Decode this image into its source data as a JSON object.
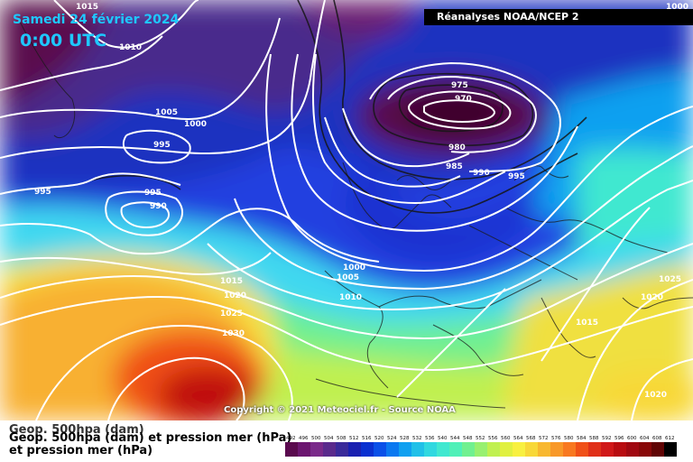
{
  "title": {
    "date": "Samedi 24 février 2024",
    "time": "0:00 UTC"
  },
  "source": "Réanalyses NOAA/NCEP 2",
  "copyright": "Copyright © 2021 Meteociel.fr - Source NOAA",
  "legend": {
    "line1": "Geop. 500hpa (dam)",
    "line2": "Geop. 500hpa (dam) et pression mer (hPa)",
    "line3": "et pression mer (hPa)"
  },
  "scale": {
    "ticks": [
      "492",
      "496",
      "500",
      "504",
      "508",
      "512",
      "516",
      "520",
      "524",
      "528",
      "532",
      "536",
      "540",
      "544",
      "548",
      "552",
      "556",
      "560",
      "564",
      "568",
      "572",
      "576",
      "580",
      "584",
      "588",
      "592",
      "596",
      "600",
      "604",
      "608",
      "612"
    ],
    "colors": [
      "#5a0a4e",
      "#6c1670",
      "#7a2a8a",
      "#5a2a8c",
      "#3a2a9a",
      "#1a20b0",
      "#0a30d0",
      "#0a50e8",
      "#0a78f0",
      "#10a0f0",
      "#20c0e8",
      "#30d8e0",
      "#40e8d0",
      "#50f0b8",
      "#70f090",
      "#98f070",
      "#c0f050",
      "#e0f040",
      "#f8f040",
      "#f8d838",
      "#f8b830",
      "#f89828",
      "#f87820",
      "#f05018",
      "#e03018",
      "#d01818",
      "#b80c10",
      "#a00810",
      "#880808",
      "#600404",
      "#000000"
    ]
  },
  "isobars": [
    {
      "label": "1015"
    },
    {
      "label": "1010"
    },
    {
      "label": "1005"
    },
    {
      "label": "1000"
    },
    {
      "label": "995"
    },
    {
      "label": "995"
    },
    {
      "label": "995"
    },
    {
      "label": "990"
    },
    {
      "label": "975"
    },
    {
      "label": "970"
    },
    {
      "label": "980"
    },
    {
      "label": "985"
    },
    {
      "label": "990"
    },
    {
      "label": "995"
    },
    {
      "label": "1000"
    },
    {
      "label": "1005"
    },
    {
      "label": "1010"
    },
    {
      "label": "1015"
    },
    {
      "label": "1020"
    },
    {
      "label": "1025"
    },
    {
      "label": "1030"
    },
    {
      "label": "1025"
    },
    {
      "label": "1020"
    },
    {
      "label": "1015"
    },
    {
      "label": "1020"
    },
    {
      "label": "1000"
    }
  ]
}
